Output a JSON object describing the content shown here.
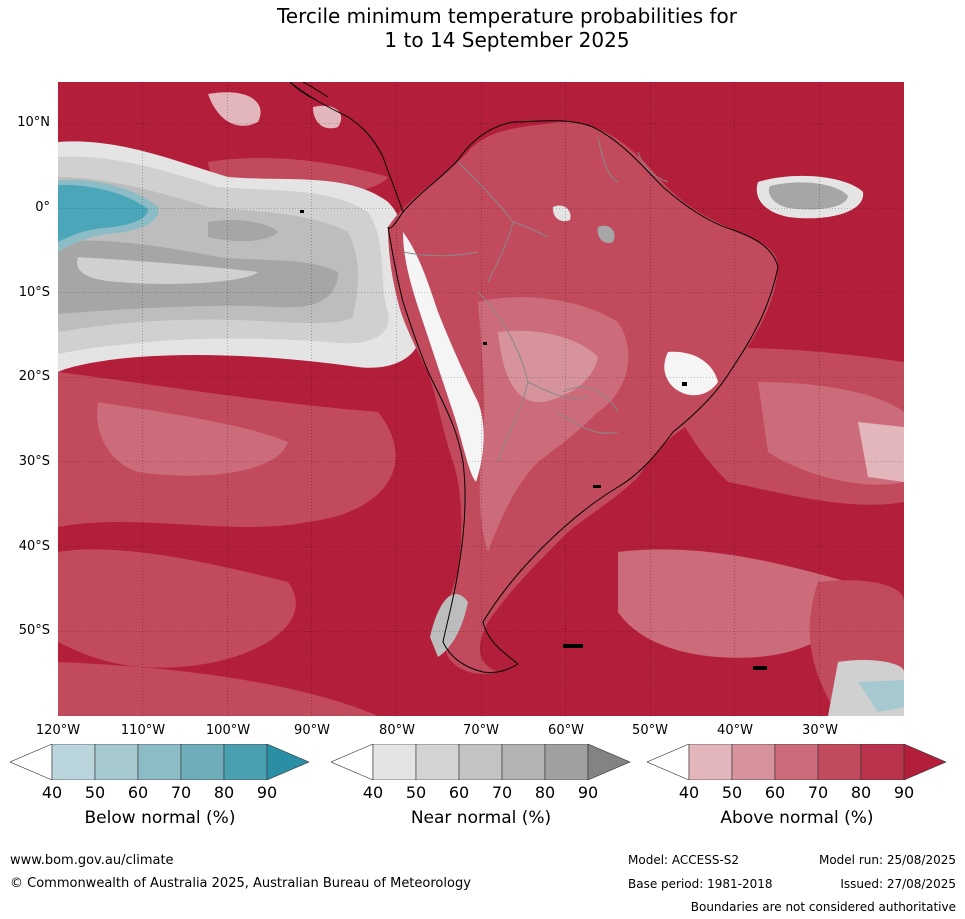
{
  "title_line1": "Tercile minimum temperature probabilities for",
  "title_line2": "1 to 14 September 2025",
  "map": {
    "lat_labels": [
      "10°N",
      "0°",
      "10°S",
      "20°S",
      "30°S",
      "40°S",
      "50°S"
    ],
    "lon_labels": [
      "120°W",
      "110°W",
      "100°W",
      "90°W",
      "80°W",
      "70°W",
      "60°W",
      "50°W",
      "40°W",
      "30°W"
    ],
    "colors": {
      "above_90": "#b31e3b",
      "above_80": "#c24a5d",
      "above_70": "#cc6b7a",
      "above_60": "#d7939c",
      "above_50": "#e3b6bc",
      "near_80": "#a6a6a6",
      "near_70": "#bdbdbd",
      "near_60": "#d0d0d0",
      "near_50": "#e4e4e4",
      "below_80": "#4aa6b8",
      "below_90": "#2a8ea4",
      "white": "#f5f5f5",
      "coast": "#000000",
      "border": "#888888"
    }
  },
  "colorbars": [
    {
      "title": "Below normal (%)",
      "ticks": [
        "40",
        "50",
        "60",
        "70",
        "80",
        "90"
      ],
      "colors": [
        "#ffffff",
        "#bad5db",
        "#a6c9d0",
        "#8cbcc6",
        "#6fadbb",
        "#4aa0b1",
        "#2a8ea4"
      ]
    },
    {
      "title": "Near normal (%)",
      "ticks": [
        "40",
        "50",
        "60",
        "70",
        "80",
        "90"
      ],
      "colors": [
        "#ffffff",
        "#e4e4e4",
        "#d4d4d4",
        "#c3c3c3",
        "#b3b3b3",
        "#a0a0a0",
        "#838383"
      ]
    },
    {
      "title": "Above normal (%)",
      "ticks": [
        "40",
        "50",
        "60",
        "70",
        "80",
        "90"
      ],
      "colors": [
        "#ffffff",
        "#e3b6bc",
        "#d7939c",
        "#cc6b7a",
        "#c24a5d",
        "#b8334b",
        "#b31e3b"
      ]
    }
  ],
  "footer": {
    "website": "www.bom.gov.au/climate",
    "copyright": "© Commonwealth of Australia 2025, Australian Bureau of Meteorology",
    "model": "Model: ACCESS-S2",
    "base_period": "Base period: 1981-2018",
    "model_run": "Model run: 25/08/2025",
    "issued": "Issued: 27/08/2025",
    "disclaimer": "Boundaries are not considered authoritative"
  }
}
